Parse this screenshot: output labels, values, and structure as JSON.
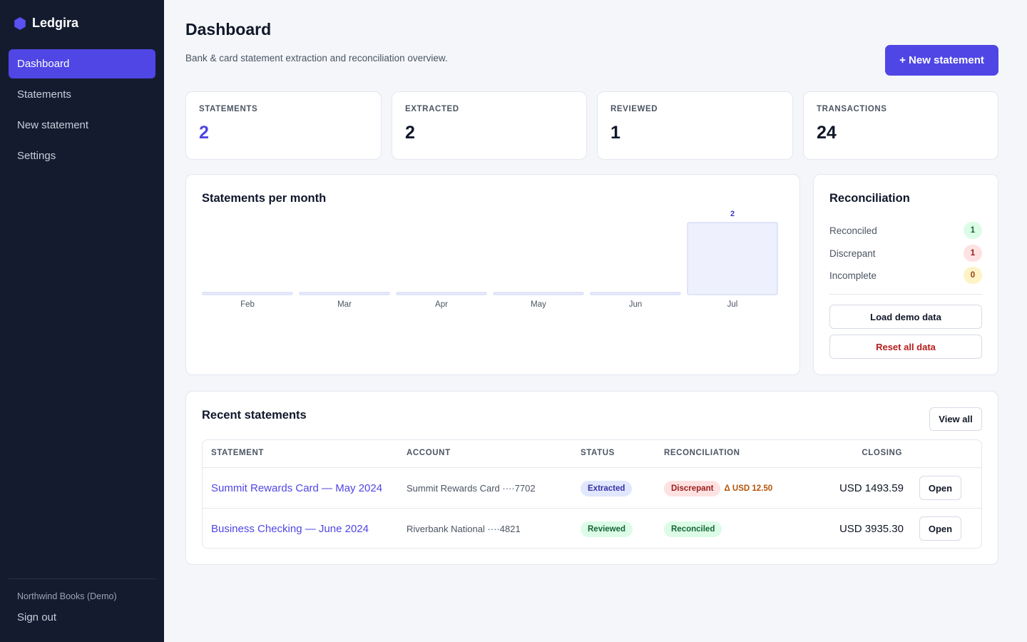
{
  "brand": {
    "name": "Ledgira"
  },
  "sidebar": {
    "items": [
      {
        "label": "Dashboard",
        "active": true
      },
      {
        "label": "Statements"
      },
      {
        "label": "New statement"
      },
      {
        "label": "Settings"
      }
    ],
    "org": "Northwind Books (Demo)",
    "sign_out": "Sign out"
  },
  "header": {
    "title": "Dashboard",
    "subtitle": "Bank & card statement extraction and reconciliation overview.",
    "new_statement_label": "+ New statement"
  },
  "stats": [
    {
      "label": "STATEMENTS",
      "value": "2"
    },
    {
      "label": "EXTRACTED",
      "value": "2"
    },
    {
      "label": "REVIEWED",
      "value": "1"
    },
    {
      "label": "TRANSACTIONS",
      "value": "24"
    }
  ],
  "chart_card": {
    "title": "Statements per month"
  },
  "chart_data": {
    "type": "bar",
    "categories": [
      "Feb",
      "Mar",
      "Apr",
      "May",
      "Jun",
      "Jul"
    ],
    "values": [
      0,
      0,
      0,
      0,
      0,
      2
    ],
    "data_labels": [
      "",
      "",
      "",
      "",
      "",
      "2"
    ],
    "title": "Statements per month",
    "xlabel": "",
    "ylabel": "",
    "ylim": [
      0,
      2
    ],
    "grid": false,
    "colors": {
      "fill": "#eef1fd",
      "stroke": "#c9d0f5",
      "label": "#3f3bbf"
    }
  },
  "reconciliation": {
    "title": "Reconciliation",
    "rows": [
      {
        "label": "Reconciled",
        "count": "1",
        "bg": "#dcfce7",
        "fg": "#166534"
      },
      {
        "label": "Discrepant",
        "count": "1",
        "bg": "#fee2e2",
        "fg": "#991b1b"
      },
      {
        "label": "Incomplete",
        "count": "0",
        "bg": "#fef3c7",
        "fg": "#92400e"
      }
    ],
    "load_demo_label": "Load demo data",
    "reset_label": "Reset all data"
  },
  "recent": {
    "title": "Recent statements",
    "view_all_label": "View all",
    "columns": [
      "STATEMENT",
      "ACCOUNT",
      "STATUS",
      "RECONCILIATION",
      "CLOSING"
    ],
    "rows": [
      {
        "statement": "Summit Rewards Card — May 2024",
        "account": "Summit Rewards Card ····7702",
        "status": "Extracted",
        "reconciliation": "Discrepant",
        "delta": "Δ USD 12.50",
        "closing": "USD 1493.59",
        "open_label": "Open"
      },
      {
        "statement": "Business Checking — June 2024",
        "account": "Riverbank National ····4821",
        "status": "Reviewed",
        "reconciliation": "Reconciled",
        "delta": "",
        "closing": "USD 3935.30",
        "open_label": "Open"
      }
    ]
  },
  "colors": {
    "accent": "#4f46e5",
    "sidebar_bg": "#141b2e",
    "page_bg": "#f4f6fa"
  }
}
